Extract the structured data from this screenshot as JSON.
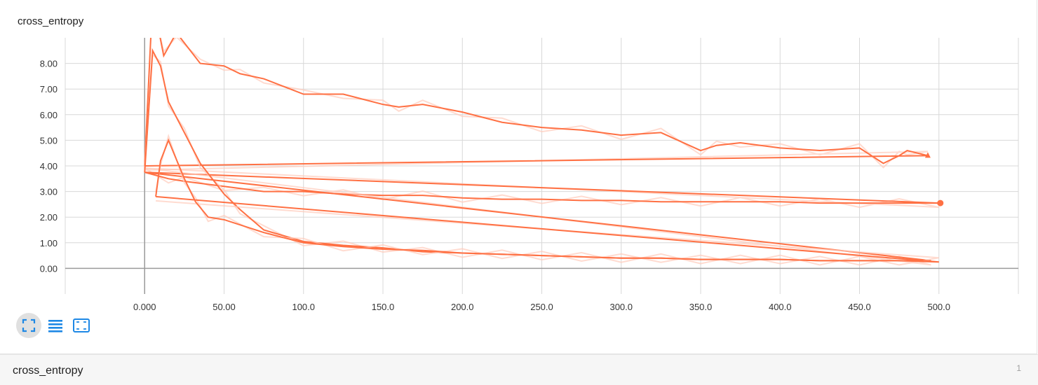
{
  "card": {
    "title": "cross_entropy"
  },
  "controls": [
    {
      "name": "fit-domain-icon",
      "label": "fit domain"
    },
    {
      "name": "toggle-log-icon",
      "label": "toggle y axis log scale"
    },
    {
      "name": "fit-data-icon",
      "label": "fit to data"
    }
  ],
  "footer": {
    "title": "cross_entropy",
    "count": "1"
  },
  "colors": {
    "line": "#ff7043",
    "smooth_faint": "#ffccbc",
    "grid": "#d8d8d8",
    "axis": "#9a9a9a",
    "icon": "#1e88e5"
  },
  "chart_data": {
    "type": "line",
    "title": "",
    "xlabel": "",
    "ylabel": "",
    "xlim": [
      -50,
      550
    ],
    "ylim": [
      -1,
      9
    ],
    "x_ticks": [
      0,
      50,
      100,
      150,
      200,
      250,
      300,
      350,
      400,
      450,
      500
    ],
    "x_tick_labels": [
      "0.000",
      "50.00",
      "100.0",
      "150.0",
      "200.0",
      "250.0",
      "300.0",
      "350.0",
      "400.0",
      "450.0",
      "500.0"
    ],
    "y_ticks": [
      0,
      1,
      2,
      3,
      4,
      5,
      6,
      7,
      8
    ],
    "y_tick_labels": [
      "0.00",
      "1.00",
      "2.00",
      "3.00",
      "4.00",
      "5.00",
      "6.00",
      "7.00",
      "8.00"
    ],
    "grid": true,
    "series": [
      {
        "x": [
          0,
          5,
          12,
          20,
          35,
          50,
          60,
          75,
          100,
          125,
          150,
          160,
          175,
          200,
          225,
          250,
          275,
          300,
          325,
          350,
          360,
          375,
          400,
          425,
          450,
          465,
          475,
          480,
          493,
          0
        ],
        "values": [
          4.0,
          10.5,
          8.3,
          9.2,
          8.0,
          7.9,
          7.6,
          7.4,
          6.8,
          6.8,
          6.4,
          6.3,
          6.4,
          6.1,
          5.7,
          5.5,
          5.4,
          5.2,
          5.3,
          4.6,
          4.8,
          4.9,
          4.7,
          4.6,
          4.7,
          4.1,
          4.4,
          4.6,
          4.4,
          4.0
        ]
      },
      {
        "x": [
          0,
          15,
          25,
          50,
          75,
          100,
          125,
          150,
          175,
          200,
          225,
          250,
          275,
          300,
          325,
          350,
          375,
          400,
          425,
          450,
          475,
          500,
          0
        ],
        "values": [
          3.75,
          3.5,
          3.4,
          3.2,
          3.0,
          3.0,
          2.9,
          2.85,
          2.85,
          2.75,
          2.7,
          2.7,
          2.65,
          2.65,
          2.6,
          2.6,
          2.6,
          2.6,
          2.55,
          2.55,
          2.55,
          2.55,
          3.75
        ]
      },
      {
        "x": [
          0,
          5,
          10,
          15,
          25,
          35,
          50,
          60,
          75,
          100,
          125,
          150,
          175,
          200,
          225,
          250,
          275,
          300,
          325,
          350,
          375,
          400,
          425,
          450,
          475,
          495,
          0
        ],
        "values": [
          3.75,
          8.5,
          7.9,
          6.5,
          5.3,
          4.1,
          2.9,
          2.3,
          1.5,
          1.05,
          0.9,
          0.8,
          0.65,
          0.6,
          0.55,
          0.5,
          0.45,
          0.4,
          0.4,
          0.35,
          0.35,
          0.35,
          0.3,
          0.3,
          0.3,
          0.3,
          3.75
        ]
      },
      {
        "x": [
          7,
          10,
          15,
          25,
          32,
          40,
          50,
          75,
          100,
          125,
          150,
          175,
          200,
          225,
          250,
          275,
          300,
          325,
          350,
          375,
          400,
          425,
          450,
          475,
          500,
          7
        ],
        "values": [
          2.8,
          4.2,
          5.0,
          3.5,
          2.6,
          2.0,
          1.9,
          1.4,
          1.0,
          0.85,
          0.75,
          0.7,
          0.6,
          0.55,
          0.5,
          0.45,
          0.4,
          0.4,
          0.35,
          0.35,
          0.35,
          0.3,
          0.3,
          0.3,
          0.25,
          2.8
        ]
      }
    ]
  }
}
